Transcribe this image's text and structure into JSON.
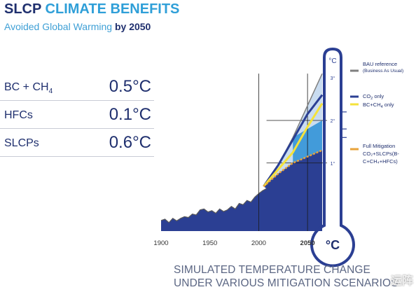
{
  "header": {
    "title_part1": "SLCP",
    "title_part2": "CLIMATE BENEFITS",
    "subtitle_part1": "Avoided Global Warming",
    "subtitle_part2": "by 2050"
  },
  "benefits": [
    {
      "label": "BC + CH",
      "sub": "4",
      "value": "0.5°C"
    },
    {
      "label": "HFCs",
      "sub": "",
      "value": "0.1°C"
    },
    {
      "label": "SLCPs",
      "sub": "",
      "value": "0.6°C"
    }
  ],
  "legend": {
    "bau_title": "BAU reference",
    "bau_sub": "(Business As Usual)",
    "co2_pre": "CO",
    "co2_sub": "2",
    "co2_post": " only",
    "bcch4_pre": "BC+CH",
    "bcch4_sub": "4",
    "bcch4_post": " only",
    "full_l1": "Full Mitigation",
    "full_l2": "CO₂+SLCPs(B-",
    "full_l3": "C+CH₄+HFCs)"
  },
  "thermometer": {
    "unit_top": "°C",
    "unit_bulb": "°C"
  },
  "footer": {
    "line1": "SIMULATED TEMPERATURE CHANGE",
    "line2": "UNDER VARIOUS MITIGATION SCENARIOS"
  },
  "watermark": "运阵",
  "colors": {
    "navy": "#1f2f6e",
    "dark_blue": "#2b3f93",
    "mid_blue": "#2a8fd6",
    "light_blue": "#c9dcf0",
    "bau_gray": "#7f7f7f",
    "co2_line": "#2b3f93",
    "bcch4_line": "#f4e23a",
    "full_line": "#e8a33a",
    "accent": "#2f9fd8"
  },
  "chart_data": {
    "type": "line",
    "title": "SIMULATED TEMPERATURE CHANGE UNDER VARIOUS MITIGATION SCENARIOS",
    "xlabel": "",
    "ylabel": "°C",
    "xlim": [
      1900,
      2070
    ],
    "ylim": [
      -0.6,
      3.3
    ],
    "x_ticks": [
      1900,
      1950,
      2000,
      2050
    ],
    "y_ticks": [
      1,
      2,
      3
    ],
    "y_tick_labels": [
      "1°",
      "2°",
      "3°"
    ],
    "observed": {
      "name": "",
      "x": [
        1900,
        1904,
        1908,
        1912,
        1916,
        1920,
        1924,
        1928,
        1932,
        1936,
        1940,
        1944,
        1948,
        1952,
        1956,
        1960,
        1964,
        1968,
        1972,
        1976,
        1980,
        1984,
        1988,
        1992,
        1996,
        2000,
        2004,
        2008
      ],
      "y": [
        -0.35,
        -0.32,
        -0.4,
        -0.3,
        -0.36,
        -0.3,
        -0.26,
        -0.28,
        -0.2,
        -0.22,
        -0.1,
        -0.08,
        -0.15,
        -0.12,
        -0.18,
        -0.08,
        -0.14,
        -0.1,
        -0.02,
        -0.08,
        0.05,
        0.02,
        0.12,
        0.08,
        0.2,
        0.28,
        0.35,
        0.4
      ]
    },
    "series": [
      {
        "name": "BAU reference",
        "x": [
          2005,
          2020,
          2035,
          2050,
          2065
        ],
        "y": [
          0.45,
          0.95,
          1.6,
          2.35,
          3.1
        ]
      },
      {
        "name": "CO2 only",
        "x": [
          2005,
          2020,
          2035,
          2050,
          2065
        ],
        "y": [
          0.45,
          0.95,
          1.55,
          2.15,
          2.6
        ]
      },
      {
        "name": "BC+CH4 only",
        "x": [
          2005,
          2020,
          2035,
          2050,
          2065
        ],
        "y": [
          0.45,
          0.85,
          1.25,
          1.85,
          2.4
        ]
      },
      {
        "name": "Full Mitigation",
        "x": [
          2005,
          2020,
          2035,
          2050,
          2065
        ],
        "y": [
          0.45,
          0.75,
          1.0,
          1.15,
          1.3
        ]
      }
    ]
  }
}
